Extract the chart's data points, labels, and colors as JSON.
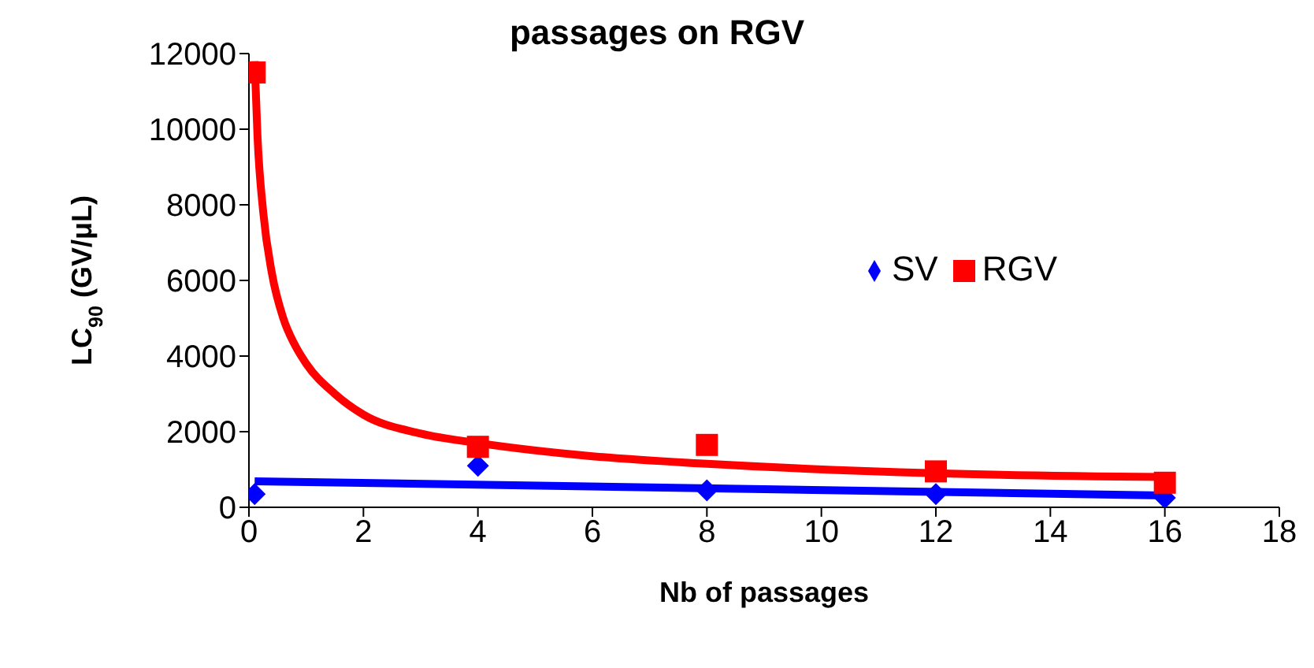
{
  "chart_data": {
    "type": "scatter",
    "title": "passages on RGV",
    "xlabel": "Nb of passages",
    "ylabel": "LC$_{90}$ (GV/μL)",
    "x": [
      0.1,
      4,
      8,
      12,
      16
    ],
    "series": [
      {
        "name": "SV",
        "color": "#0000ff",
        "marker": "diamond",
        "values": [
          350,
          1100,
          450,
          350,
          250
        ]
      },
      {
        "name": "RGV",
        "color": "#ff0000",
        "marker": "square",
        "values": [
          11500,
          1600,
          1650,
          950,
          650
        ]
      },
      {
        "type": "line",
        "color": "#ff0000",
        "marker": "none",
        "x": [
          0.1,
          0.15,
          0.25,
          0.4,
          0.6,
          0.8,
          1,
          1.5,
          2,
          3,
          4,
          6,
          8,
          12,
          16
        ],
        "values": [
          11800,
          9800,
          7800,
          6200,
          5000,
          4300,
          3800,
          3000,
          2450,
          1950,
          1700,
          1350,
          1150,
          900,
          800
        ]
      },
      {
        "type": "line",
        "color": "#0000ff",
        "marker": "none",
        "x": [
          0.1,
          16
        ],
        "values": [
          690,
          310
        ]
      }
    ],
    "xlim": [
      0,
      18
    ],
    "xticks": [
      0,
      2,
      4,
      6,
      8,
      10,
      12,
      14,
      16,
      18
    ],
    "ylim": [
      0,
      12000
    ],
    "yticks": [
      0,
      2000,
      4000,
      6000,
      8000,
      10000,
      12000
    ],
    "grid": false,
    "legend": "right"
  }
}
